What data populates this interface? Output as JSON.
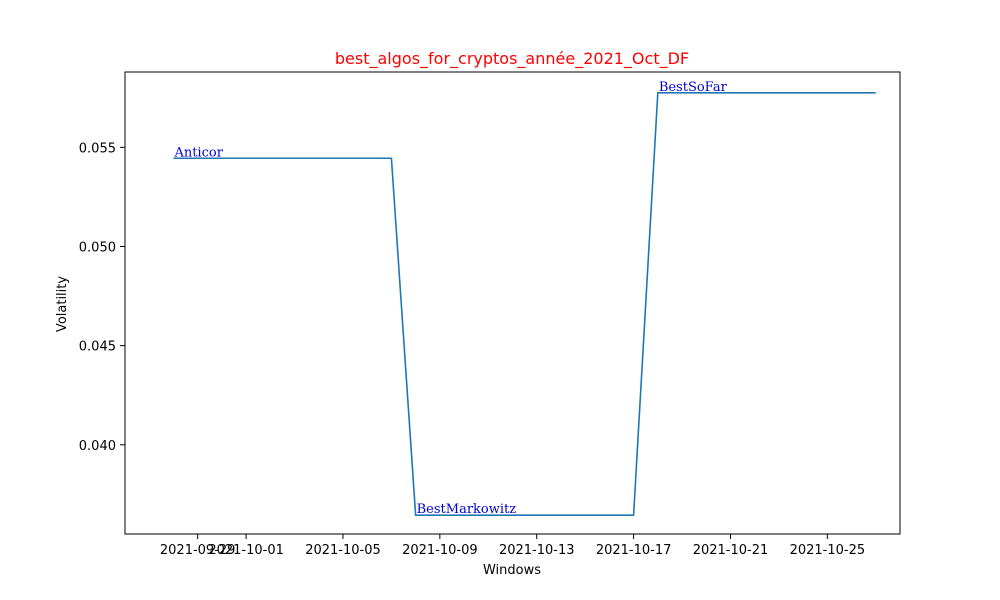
{
  "chart_data": {
    "type": "line",
    "title": "best_algos_for_cryptos_année_2021_Oct_DF",
    "xlabel": "Windows",
    "ylabel": "Volatility",
    "xlim": [
      "2021-09-26",
      "2021-10-28"
    ],
    "ylim": [
      0.0355,
      0.0588
    ],
    "grid": false,
    "x_ticks": [
      "2021-09-29",
      "2021-10-01",
      "2021-10-05",
      "2021-10-09",
      "2021-10-13",
      "2021-10-17",
      "2021-10-21",
      "2021-10-25"
    ],
    "y_ticks": [
      0.04,
      0.045,
      0.05,
      0.055
    ],
    "y_tick_labels": [
      "0.040",
      "0.045",
      "0.050",
      "0.055"
    ],
    "series": [
      {
        "x": [
          "2021-09-28",
          "2021-10-07",
          "2021-10-08",
          "2021-10-17",
          "2021-10-18",
          "2021-10-27"
        ],
        "y": [
          0.05445,
          0.05445,
          0.03645,
          0.03645,
          0.05775,
          0.05775
        ]
      }
    ],
    "annotations": [
      {
        "text": "Anticor",
        "x": "2021-09-28",
        "y": 0.05445
      },
      {
        "text": "BestMarkowitz",
        "x": "2021-10-08",
        "y": 0.03645
      },
      {
        "text": "BestSoFar",
        "x": "2021-10-18",
        "y": 0.05775
      }
    ],
    "colors": {
      "line": "#1f77b4",
      "title": "#ff0000",
      "annotation": "#0000cd",
      "axes": "#000000"
    }
  }
}
